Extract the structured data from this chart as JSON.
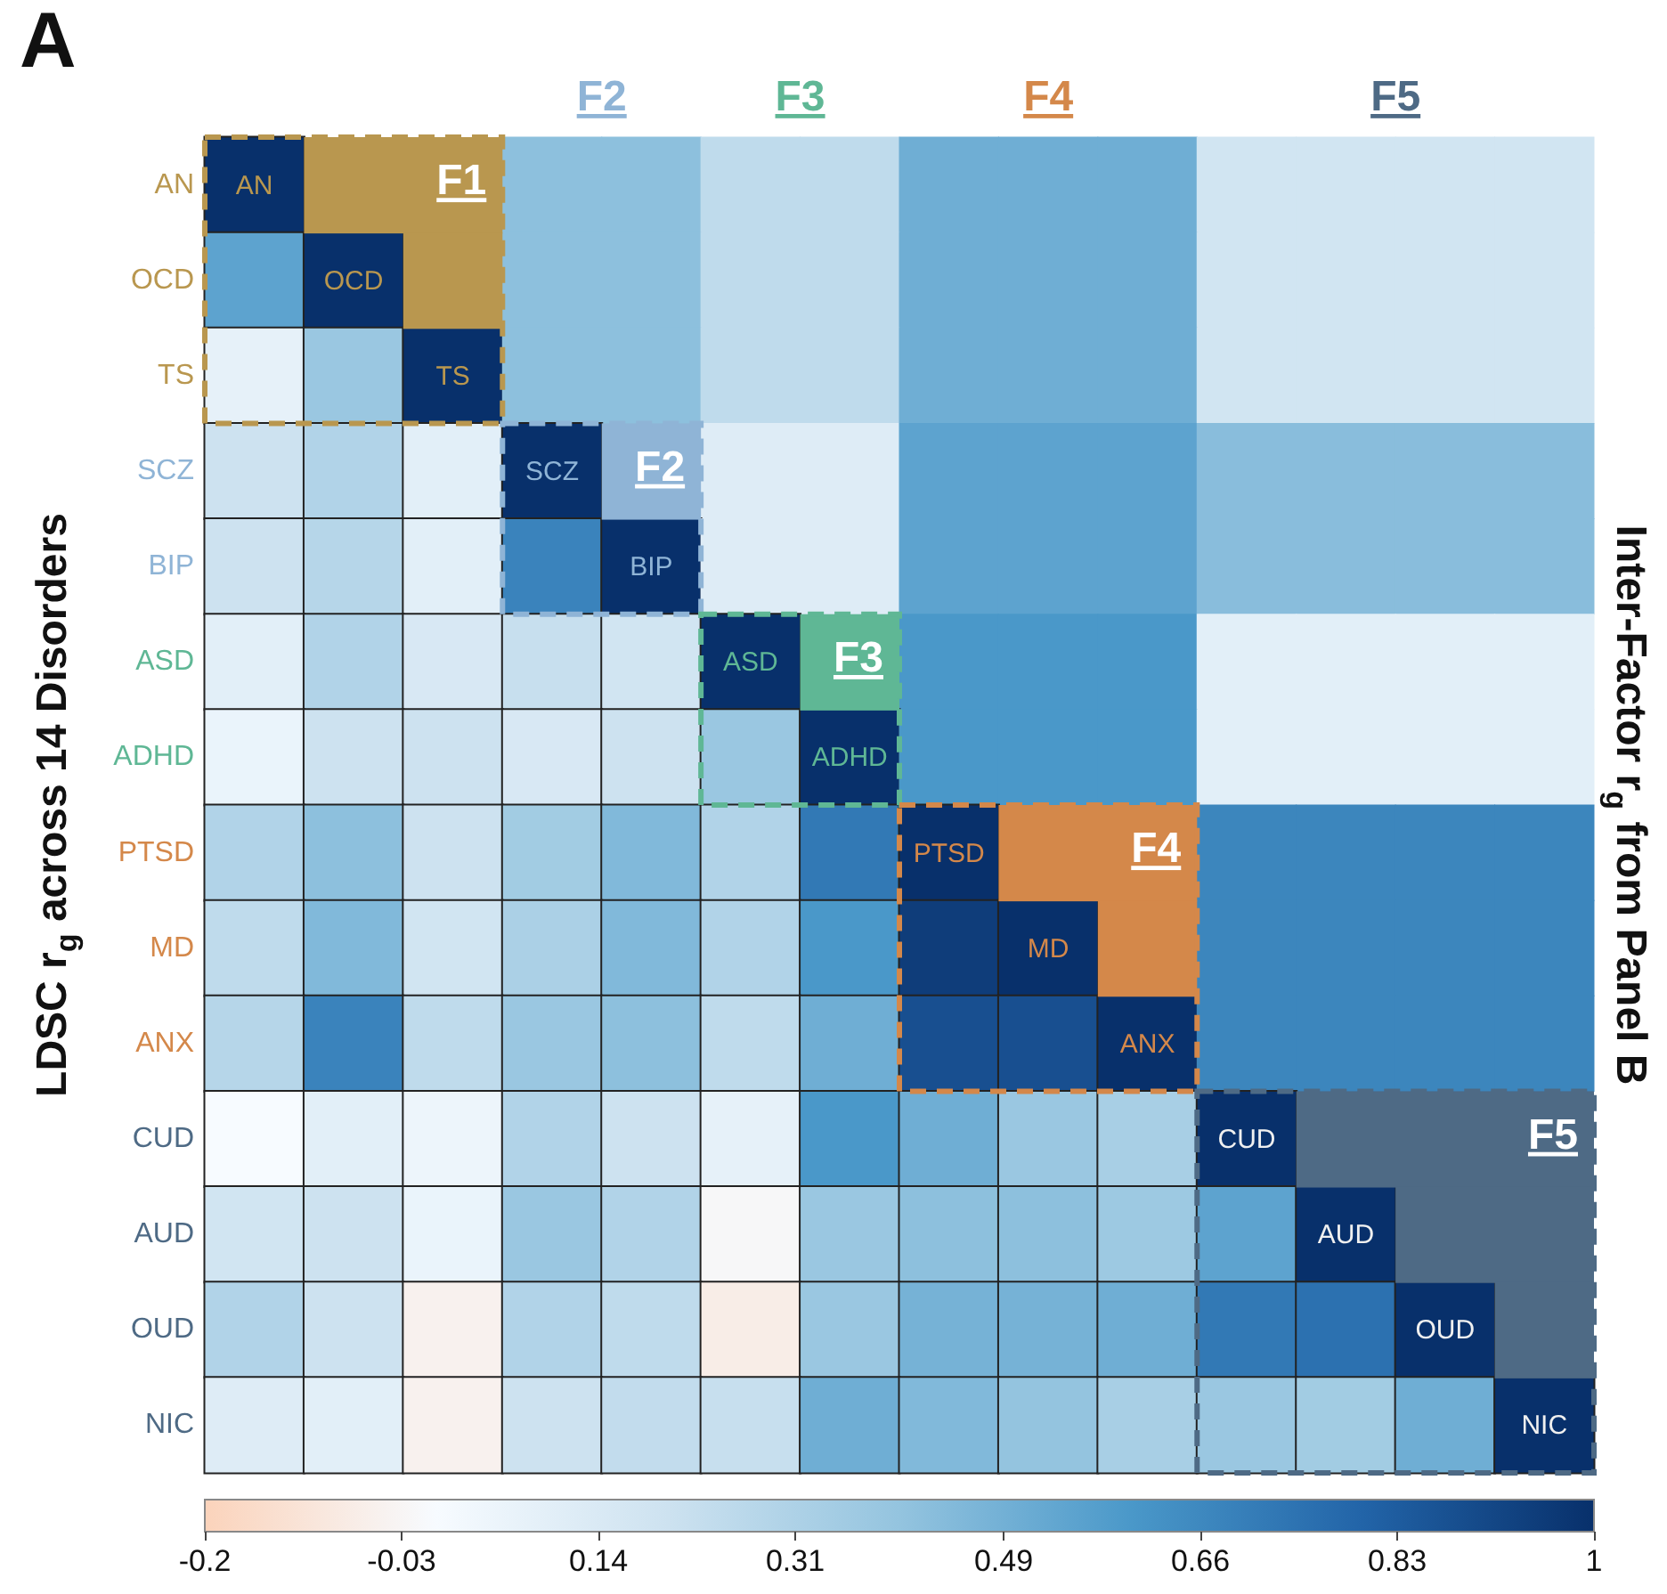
{
  "chart_data": {
    "type": "heatmap",
    "title": "A",
    "ylabel": "LDSC r$_{g}$ across 14 Disorders",
    "y2label": "Inter-Factor r$_{g}$ from Panel B",
    "categories": [
      "AN",
      "OCD",
      "TS",
      "SCZ",
      "BIP",
      "ASD",
      "ADHD",
      "PTSD",
      "MD",
      "ANX",
      "CUD",
      "AUD",
      "OUD",
      "NIC"
    ],
    "y_categories": [
      "AN",
      "OCD",
      "TS",
      "SCZ",
      "BIP",
      "ASD",
      "ADHD",
      "PTSD",
      "MD",
      "ANX",
      "CUD",
      "AUD",
      "OUD",
      "NIC"
    ],
    "cells": [
      [
        1,
        null,
        null,
        0.42,
        0.42,
        0.25,
        0.25,
        0.5,
        0.5,
        0.5,
        0.18,
        0.18,
        0.18,
        0.18
      ],
      [
        0.55,
        1,
        null,
        0.42,
        0.42,
        0.25,
        0.25,
        0.5,
        0.5,
        0.5,
        0.18,
        0.18,
        0.18,
        0.18
      ],
      [
        0.08,
        0.38,
        1,
        0.42,
        0.42,
        0.25,
        0.25,
        0.5,
        0.5,
        0.5,
        0.18,
        0.18,
        0.18,
        0.18
      ],
      [
        0.2,
        0.3,
        0.1,
        1,
        null,
        0.12,
        0.12,
        0.55,
        0.55,
        0.55,
        0.43,
        0.43,
        0.43,
        0.43
      ],
      [
        0.2,
        0.28,
        0.1,
        0.68,
        1,
        0.12,
        0.12,
        0.55,
        0.55,
        0.55,
        0.43,
        0.43,
        0.43,
        0.43
      ],
      [
        0.1,
        0.3,
        0.15,
        0.22,
        0.18,
        1,
        null,
        0.6,
        0.6,
        0.6,
        0.1,
        0.1,
        0.1,
        0.1
      ],
      [
        0.06,
        0.2,
        0.2,
        0.15,
        0.2,
        0.38,
        1,
        0.6,
        0.6,
        0.6,
        0.1,
        0.1,
        0.1,
        0.1
      ],
      [
        0.3,
        0.42,
        0.2,
        0.35,
        0.45,
        0.3,
        0.72,
        1,
        null,
        null,
        0.67,
        0.67,
        0.67,
        0.67
      ],
      [
        0.25,
        0.45,
        0.18,
        0.32,
        0.45,
        0.3,
        0.6,
        0.95,
        1,
        null,
        0.67,
        0.67,
        0.67,
        0.67
      ],
      [
        0.28,
        0.68,
        0.25,
        0.38,
        0.42,
        0.25,
        0.5,
        0.88,
        0.88,
        1,
        0.67,
        0.67,
        0.67,
        0.67
      ],
      [
        0.0,
        0.1,
        0.05,
        0.3,
        0.2,
        0.08,
        0.6,
        0.5,
        0.38,
        0.33,
        1,
        null,
        null,
        null
      ],
      [
        0.18,
        0.2,
        0.06,
        0.38,
        0.3,
        -0.02,
        0.38,
        0.42,
        0.42,
        0.37,
        0.55,
        1,
        null,
        null
      ],
      [
        0.3,
        0.2,
        -0.05,
        0.3,
        0.25,
        -0.07,
        0.38,
        0.48,
        0.48,
        0.5,
        0.72,
        0.75,
        1,
        null
      ],
      [
        0.12,
        0.1,
        -0.05,
        0.2,
        0.24,
        0.22,
        0.5,
        0.45,
        0.4,
        0.33,
        0.38,
        0.35,
        0.5,
        1
      ]
    ],
    "clim": [
      -0.2,
      1
    ],
    "cticks": [
      -0.2,
      -0.03,
      0.14,
      0.31,
      0.49,
      0.66,
      0.83,
      1
    ],
    "bands": [
      {
        "axis": "x",
        "from": "AN",
        "to": "TS",
        "label": "F1",
        "color": "#b9974f"
      },
      {
        "axis": "x",
        "from": "SCZ",
        "to": "BIP",
        "label": "F2",
        "color": "#8fb4d6"
      },
      {
        "axis": "x",
        "from": "ASD",
        "to": "ADHD",
        "label": "F3",
        "color": "#5fb795"
      },
      {
        "axis": "x",
        "from": "PTSD",
        "to": "ANX",
        "label": "F4",
        "color": "#d4884a"
      },
      {
        "axis": "x",
        "from": "CUD",
        "to": "NIC",
        "label": "F5",
        "color": "#4e6a85"
      }
    ],
    "annotations": [
      "F2",
      "F3",
      "F4",
      "F5"
    ]
  }
}
